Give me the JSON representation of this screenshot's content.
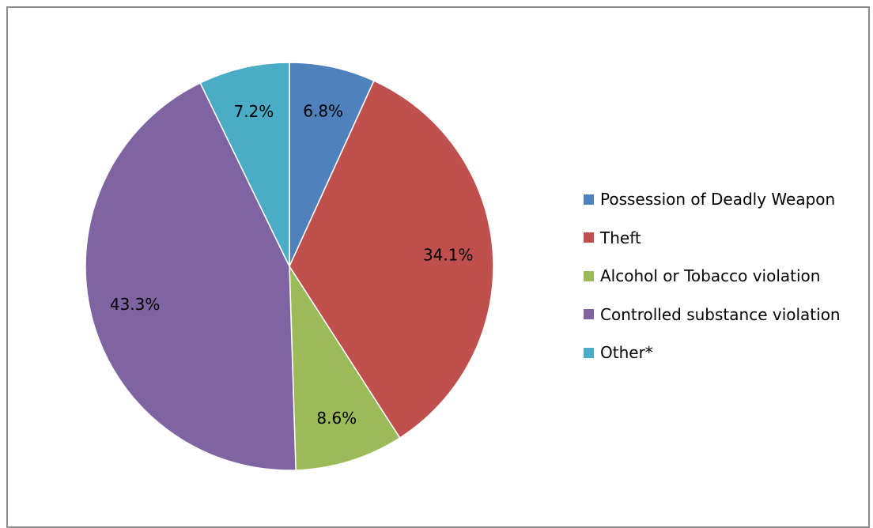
{
  "chart_data": {
    "type": "pie",
    "title": "",
    "legend_position": "right",
    "categories": [
      "Possession of Deadly Weapon",
      "Theft",
      "Alcohol or Tobacco violation",
      "Controlled substance violation",
      "Other*"
    ],
    "values": [
      6.8,
      34.1,
      8.6,
      43.3,
      7.2
    ],
    "labels": [
      "6.8%",
      "34.1%",
      "8.6%",
      "43.3%",
      "7.2%"
    ],
    "colors": [
      "#4F81BD",
      "#C0504D",
      "#9BBB59",
      "#8064A2",
      "#4BACC6"
    ]
  }
}
